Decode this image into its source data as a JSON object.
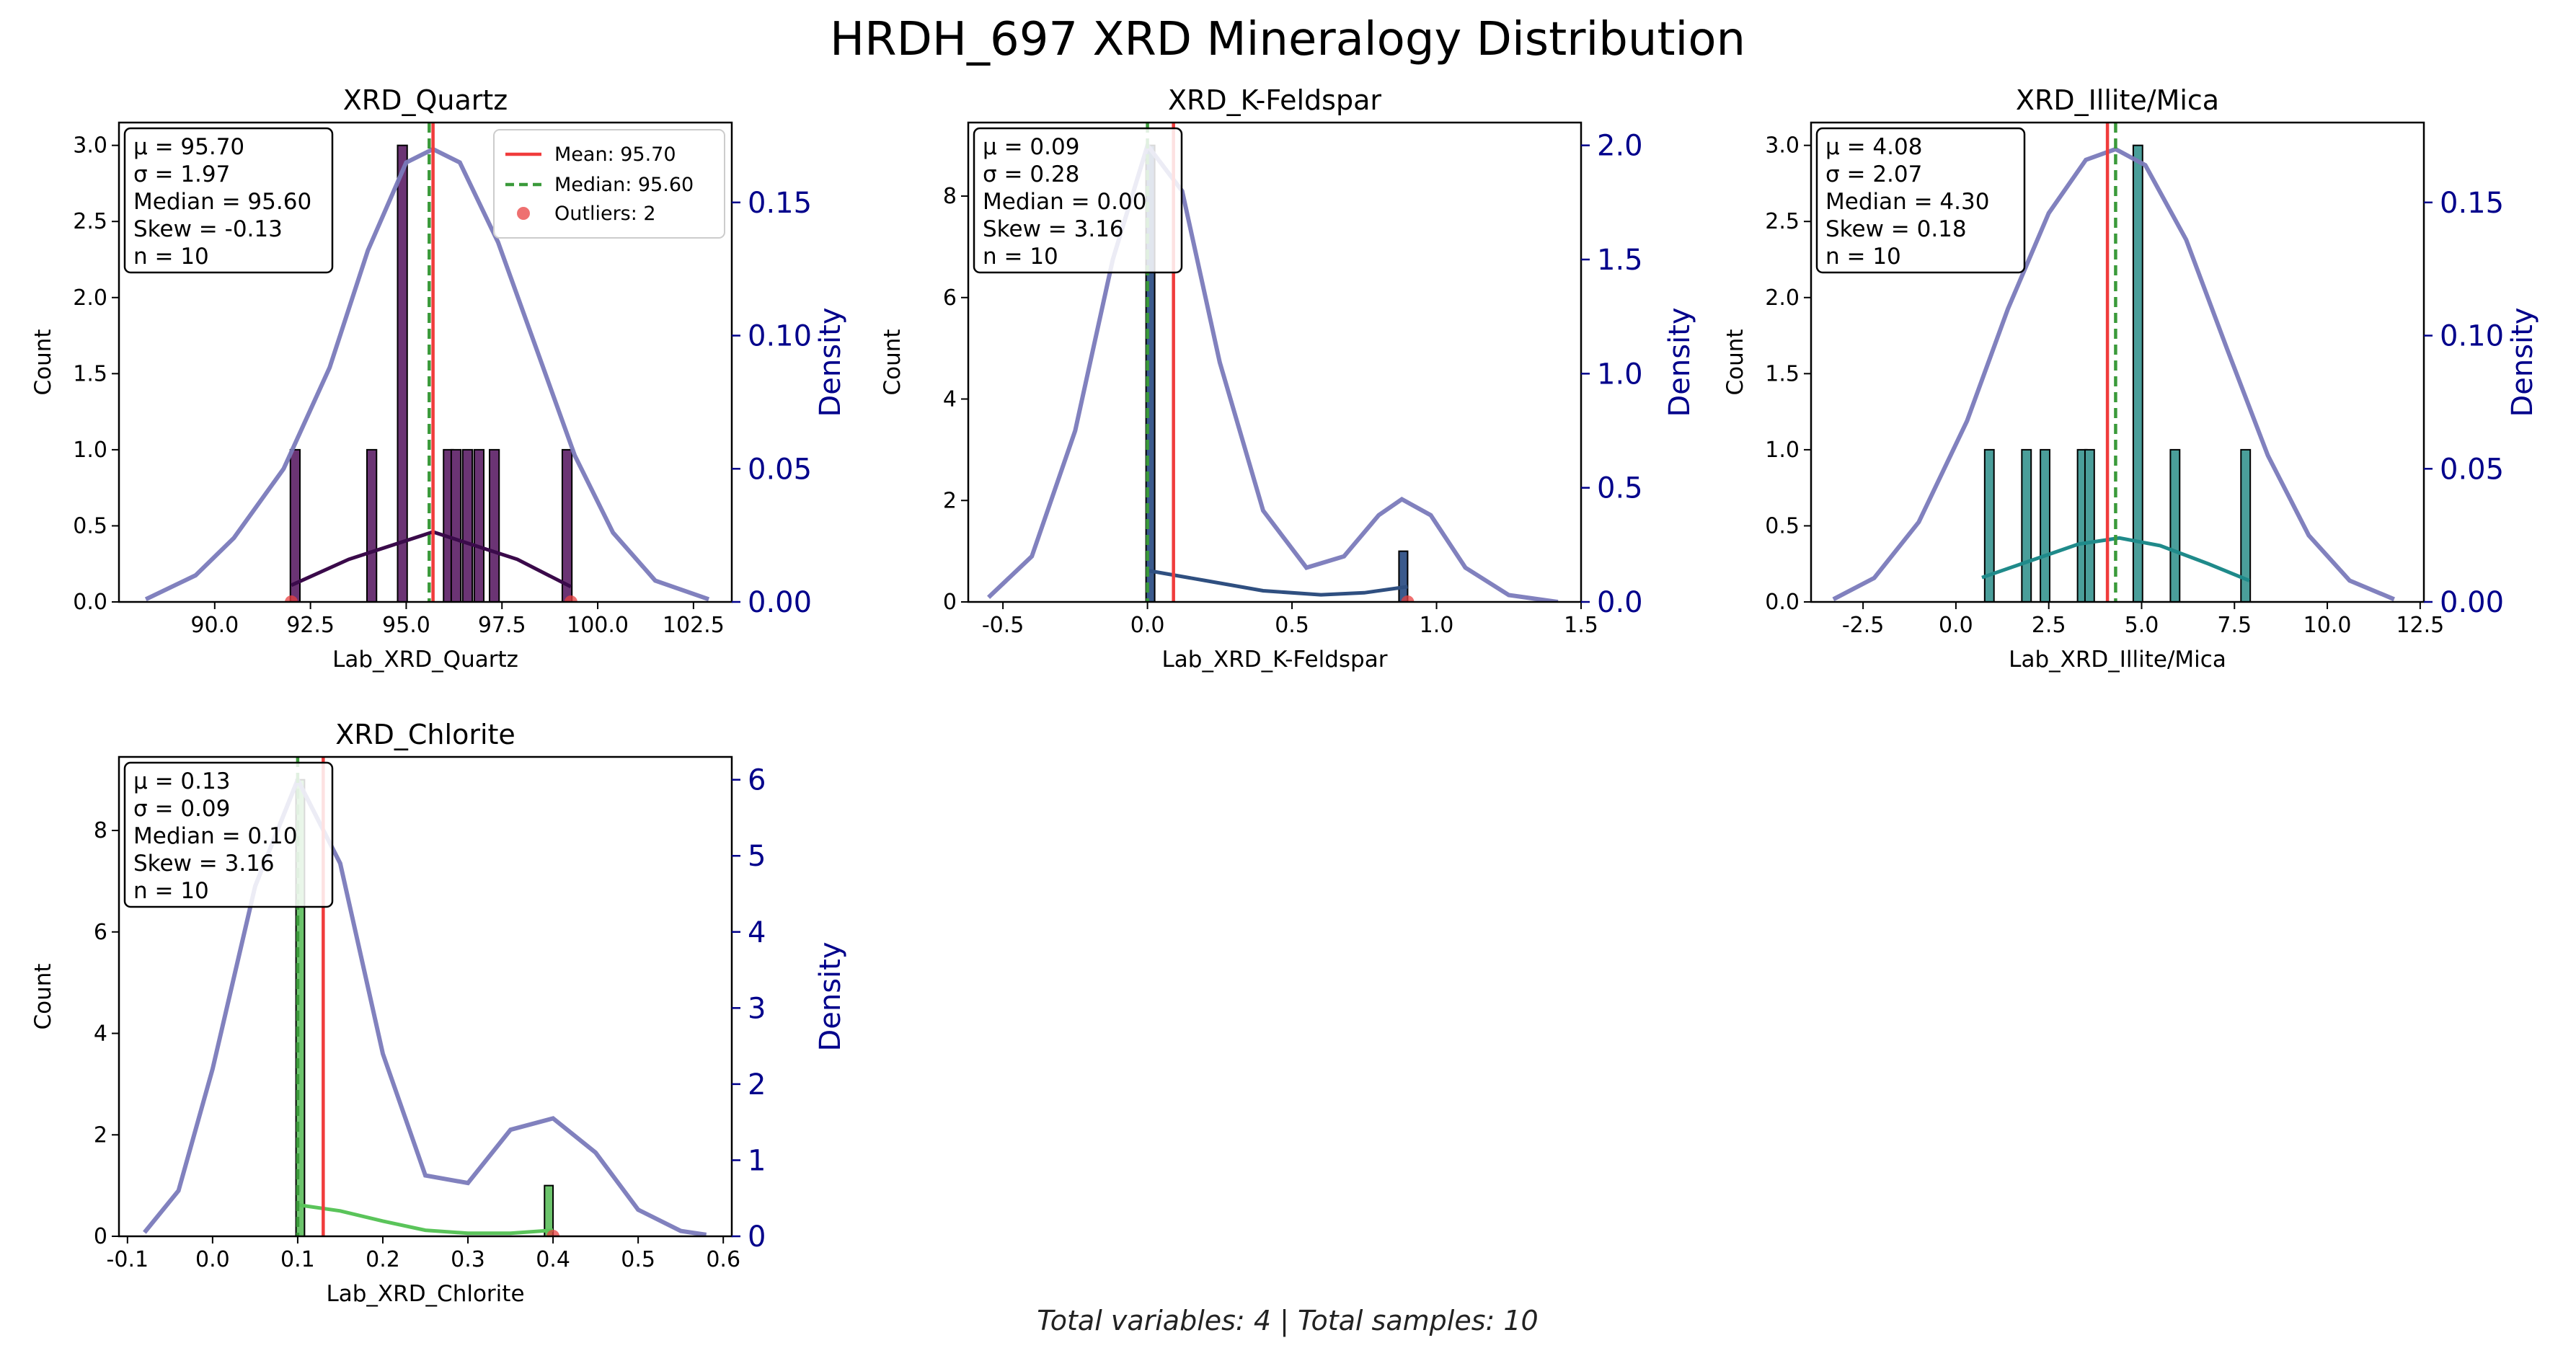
{
  "figure": {
    "title": "HRDH_697 XRD Mineralogy Distribution",
    "footer": "Total variables: 4 | Total samples: 10"
  },
  "colors": {
    "mean_line": "#f03c3c",
    "median_line": "#3a9a3a",
    "outlier": "#e84040",
    "density_curve": "#7a7aba",
    "density_axis": "#00008b"
  },
  "legend": {
    "mean": "Mean: 95.70",
    "median": "Median: 95.60",
    "outliers": "Outliers: 2"
  },
  "chart_data": [
    {
      "type": "histogram",
      "title": "XRD_Quartz",
      "xlabel": "Lab_XRD_Quartz",
      "ylabel": "Count",
      "y2label": "Density",
      "xlim": [
        87.5,
        103.5
      ],
      "ylim": [
        0,
        3.15
      ],
      "y2lim": [
        0,
        0.18
      ],
      "xticks": [
        90.0,
        92.5,
        95.0,
        97.5,
        100.0,
        102.5
      ],
      "xtick_labels": [
        "90.0",
        "92.5",
        "95.0",
        "97.5",
        "100.0",
        "102.5"
      ],
      "yticks": [
        0,
        0.5,
        1.0,
        1.5,
        2.0,
        2.5,
        3.0
      ],
      "ytick_labels": [
        "0.0",
        "0.5",
        "1.0",
        "1.5",
        "2.0",
        "2.5",
        "3.0"
      ],
      "y2ticks": [
        0,
        0.05,
        0.1,
        0.15
      ],
      "y2tick_labels": [
        "0.00",
        "0.05",
        "0.10",
        "0.15"
      ],
      "bar_color": "#6b3474",
      "kde_color": "#3a0a4a",
      "bars": [
        [
          92.1,
          1
        ],
        [
          94.1,
          1
        ],
        [
          94.9,
          3
        ],
        [
          96.1,
          1
        ],
        [
          96.3,
          1
        ],
        [
          96.6,
          1
        ],
        [
          96.9,
          1
        ],
        [
          97.3,
          1
        ],
        [
          99.2,
          1
        ]
      ],
      "bar_width": 0.25,
      "mean": 95.7,
      "median": 95.6,
      "outliers": [
        92.0,
        99.3
      ],
      "small_kde": [
        [
          92.0,
          0.11
        ],
        [
          93.5,
          0.28
        ],
        [
          95.7,
          0.46
        ],
        [
          97.9,
          0.28
        ],
        [
          99.3,
          0.1
        ]
      ],
      "density": [
        [
          88.2,
          0.001
        ],
        [
          89.5,
          0.01
        ],
        [
          90.5,
          0.024
        ],
        [
          91.8,
          0.05
        ],
        [
          93.0,
          0.088
        ],
        [
          94.0,
          0.132
        ],
        [
          95.0,
          0.165
        ],
        [
          95.7,
          0.17
        ],
        [
          96.4,
          0.165
        ],
        [
          97.4,
          0.135
        ],
        [
          98.4,
          0.095
        ],
        [
          99.4,
          0.055
        ],
        [
          100.4,
          0.026
        ],
        [
          101.5,
          0.008
        ],
        [
          102.9,
          0.001
        ]
      ],
      "stats": [
        "μ = 95.70",
        "σ = 1.97",
        "Median = 95.60",
        "Skew = -0.13",
        "n = 10"
      ],
      "legend": true
    },
    {
      "type": "histogram",
      "title": "XRD_K-Feldspar",
      "xlabel": "Lab_XRD_K-Feldspar",
      "ylabel": "Count",
      "y2label": "Density",
      "xlim": [
        -0.62,
        1.5
      ],
      "ylim": [
        0,
        9.45
      ],
      "y2lim": [
        0,
        2.1
      ],
      "xticks": [
        -0.5,
        0.0,
        0.5,
        1.0,
        1.5
      ],
      "xtick_labels": [
        "-0.5",
        "0.0",
        "0.5",
        "1.0",
        "1.5"
      ],
      "yticks": [
        0,
        2,
        4,
        6,
        8
      ],
      "ytick_labels": [
        "0",
        "2",
        "4",
        "6",
        "8"
      ],
      "y2ticks": [
        0,
        0.5,
        1.0,
        1.5,
        2.0
      ],
      "y2tick_labels": [
        "0.0",
        "0.5",
        "1.0",
        "1.5",
        "2.0"
      ],
      "bar_color": "#3b5a8c",
      "kde_color": "#2f4f80",
      "bars": [
        [
          0.01,
          9
        ],
        [
          0.885,
          1
        ]
      ],
      "bar_width": 0.03,
      "mean": 0.09,
      "median": 0.0,
      "outliers": [
        0.9
      ],
      "small_kde": [
        [
          0.0,
          0.62
        ],
        [
          0.2,
          0.42
        ],
        [
          0.4,
          0.22
        ],
        [
          0.6,
          0.14
        ],
        [
          0.75,
          0.18
        ],
        [
          0.9,
          0.3
        ]
      ],
      "density": [
        [
          -0.55,
          0.02
        ],
        [
          -0.4,
          0.2
        ],
        [
          -0.25,
          0.75
        ],
        [
          -0.12,
          1.5
        ],
        [
          0.0,
          2.0
        ],
        [
          0.12,
          1.8
        ],
        [
          0.25,
          1.05
        ],
        [
          0.4,
          0.4
        ],
        [
          0.55,
          0.15
        ],
        [
          0.68,
          0.2
        ],
        [
          0.8,
          0.38
        ],
        [
          0.88,
          0.45
        ],
        [
          0.98,
          0.38
        ],
        [
          1.1,
          0.15
        ],
        [
          1.25,
          0.03
        ],
        [
          1.42,
          0.0
        ]
      ],
      "stats": [
        "μ = 0.09",
        "σ = 0.28",
        "Median = 0.00",
        "Skew = 3.16",
        "n = 10"
      ],
      "legend": false
    },
    {
      "type": "histogram",
      "title": "XRD_Illite/Mica",
      "xlabel": "Lab_XRD_Illite/Mica",
      "ylabel": "Count",
      "y2label": "Density",
      "xlim": [
        -3.9,
        12.6
      ],
      "ylim": [
        0,
        3.15
      ],
      "y2lim": [
        0,
        0.18
      ],
      "xticks": [
        -2.5,
        0.0,
        2.5,
        5.0,
        7.5,
        10.0,
        12.5
      ],
      "xtick_labels": [
        "-2.5",
        "0.0",
        "2.5",
        "5.0",
        "7.5",
        "10.0",
        "12.5"
      ],
      "yticks": [
        0,
        0.5,
        1.0,
        1.5,
        2.0,
        2.5,
        3.0
      ],
      "ytick_labels": [
        "0.0",
        "0.5",
        "1.0",
        "1.5",
        "2.0",
        "2.5",
        "3.0"
      ],
      "y2ticks": [
        0,
        0.05,
        0.1,
        0.15
      ],
      "y2tick_labels": [
        "0.00",
        "0.05",
        "0.10",
        "0.15"
      ],
      "bar_color": "#4a9e9a",
      "kde_color": "#1f8a8a",
      "bars": [
        [
          0.9,
          1
        ],
        [
          1.9,
          1
        ],
        [
          2.4,
          1
        ],
        [
          3.4,
          1
        ],
        [
          3.6,
          1
        ],
        [
          4.9,
          3
        ],
        [
          5.9,
          1
        ],
        [
          7.8,
          1
        ]
      ],
      "bar_width": 0.25,
      "mean": 4.08,
      "median": 4.3,
      "outliers": [],
      "small_kde": [
        [
          0.7,
          0.16
        ],
        [
          2.0,
          0.27
        ],
        [
          3.3,
          0.38
        ],
        [
          4.4,
          0.42
        ],
        [
          5.5,
          0.37
        ],
        [
          6.8,
          0.25
        ],
        [
          7.9,
          0.14
        ]
      ],
      "density": [
        [
          -3.3,
          0.001
        ],
        [
          -2.2,
          0.009
        ],
        [
          -1.0,
          0.03
        ],
        [
          0.3,
          0.068
        ],
        [
          1.4,
          0.11
        ],
        [
          2.5,
          0.146
        ],
        [
          3.5,
          0.166
        ],
        [
          4.3,
          0.17
        ],
        [
          5.1,
          0.164
        ],
        [
          6.2,
          0.136
        ],
        [
          7.3,
          0.095
        ],
        [
          8.4,
          0.055
        ],
        [
          9.5,
          0.025
        ],
        [
          10.6,
          0.008
        ],
        [
          11.8,
          0.001
        ]
      ],
      "stats": [
        "μ = 4.08",
        "σ = 2.07",
        "Median = 4.30",
        "Skew = 0.18",
        "n = 10"
      ],
      "legend": false
    },
    {
      "type": "histogram",
      "title": "XRD_Chlorite",
      "xlabel": "Lab_XRD_Chlorite",
      "ylabel": "Count",
      "y2label": "Density",
      "xlim": [
        -0.11,
        0.61
      ],
      "ylim": [
        0,
        9.45
      ],
      "y2lim": [
        0,
        6.3
      ],
      "xticks": [
        -0.1,
        0.0,
        0.1,
        0.2,
        0.3,
        0.4,
        0.5,
        0.6
      ],
      "xtick_labels": [
        "-0.1",
        "0.0",
        "0.1",
        "0.2",
        "0.3",
        "0.4",
        "0.5",
        "0.6"
      ],
      "yticks": [
        0,
        2,
        4,
        6,
        8
      ],
      "ytick_labels": [
        "0",
        "2",
        "4",
        "6",
        "8"
      ],
      "y2ticks": [
        0,
        1,
        2,
        3,
        4,
        5,
        6
      ],
      "y2tick_labels": [
        "0",
        "1",
        "2",
        "3",
        "4",
        "5",
        "6"
      ],
      "bar_color": "#6cc46c",
      "kde_color": "#5ac45a",
      "bars": [
        [
          0.103,
          9
        ],
        [
          0.395,
          1
        ]
      ],
      "bar_width": 0.01,
      "mean": 0.13,
      "median": 0.1,
      "outliers": [
        0.4
      ],
      "small_kde": [
        [
          0.1,
          0.62
        ],
        [
          0.15,
          0.5
        ],
        [
          0.2,
          0.3
        ],
        [
          0.25,
          0.12
        ],
        [
          0.3,
          0.06
        ],
        [
          0.35,
          0.06
        ],
        [
          0.4,
          0.12
        ]
      ],
      "density": [
        [
          -0.08,
          0.05
        ],
        [
          -0.04,
          0.6
        ],
        [
          0.0,
          2.2
        ],
        [
          0.05,
          4.6
        ],
        [
          0.1,
          6.0
        ],
        [
          0.15,
          4.9
        ],
        [
          0.2,
          2.4
        ],
        [
          0.25,
          0.8
        ],
        [
          0.3,
          0.7
        ],
        [
          0.35,
          1.4
        ],
        [
          0.4,
          1.55
        ],
        [
          0.45,
          1.1
        ],
        [
          0.5,
          0.35
        ],
        [
          0.55,
          0.07
        ],
        [
          0.58,
          0.02
        ]
      ],
      "stats": [
        "μ = 0.13",
        "σ = 0.09",
        "Median = 0.10",
        "Skew = 3.16",
        "n = 10"
      ],
      "legend": false
    }
  ]
}
